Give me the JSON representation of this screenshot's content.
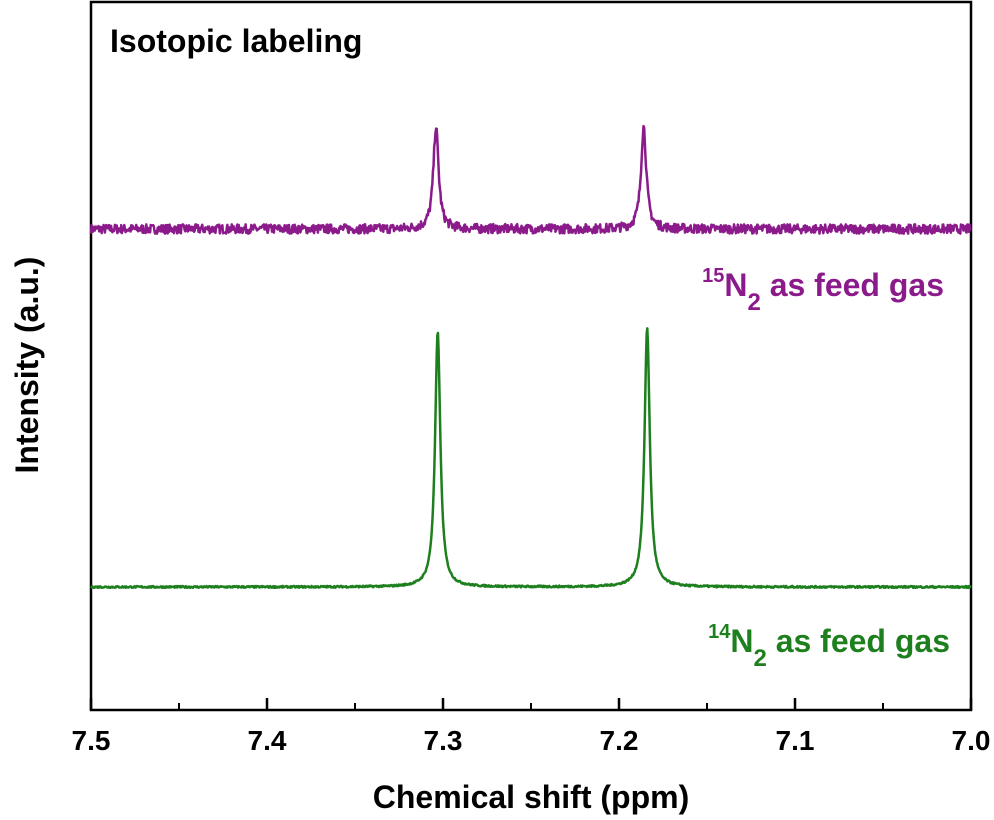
{
  "chart_data": {
    "type": "line",
    "title": "Isotopic labeling",
    "xlabel": "Chemical shift (ppm)",
    "ylabel": "Intensity (a.u.)",
    "xlim": [
      7.5,
      7.0
    ],
    "x_reversed": true,
    "xticks": [
      "7.5",
      "7.4",
      "7.3",
      "7.2",
      "7.1",
      "7.0"
    ],
    "yticks": [],
    "grid": false,
    "series": [
      {
        "name": "15N2 as feed gas",
        "label_sup": "15",
        "label_main": "N",
        "label_sub": "2",
        "label_rest": " as feed gas",
        "color": "#8B1A8B",
        "peaks": [
          {
            "x": 7.304,
            "height": 0.22
          },
          {
            "x": 7.186,
            "height": 0.22
          }
        ],
        "baseline": 0.78,
        "noise": 0.01
      },
      {
        "name": "14N2 as feed gas",
        "label_sup": "14",
        "label_main": "N",
        "label_sub": "2",
        "label_rest": " as feed gas",
        "color": "#1E7F1E",
        "peaks": [
          {
            "x": 7.303,
            "height": 0.56
          },
          {
            "x": 7.184,
            "height": 0.57
          }
        ],
        "baseline": 0.0,
        "noise": 0.002
      }
    ]
  }
}
